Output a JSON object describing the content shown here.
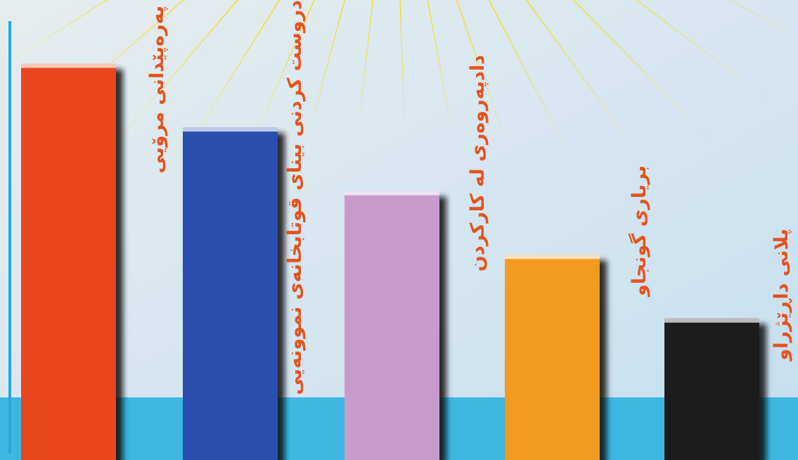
{
  "chart_data": {
    "type": "bar",
    "categories": [
      "پەرەپێدانی مرۆیی",
      "دروست کردنی بینای قوتابخانەی نموونەیی",
      "دادپەروەری لە کارکردن",
      "بریاری گونجاو",
      "پلانی داڕێژراو"
    ],
    "series": [
      {
        "values": [
          56,
          47,
          38,
          29,
          20
        ],
        "colors": [
          "#e8461c",
          "#2b4fae",
          "#c99bcb",
          "#f49a1f",
          "#1c1c1c"
        ]
      }
    ],
    "ylim": [
      0,
      65
    ],
    "label_color": "#e4541f"
  }
}
